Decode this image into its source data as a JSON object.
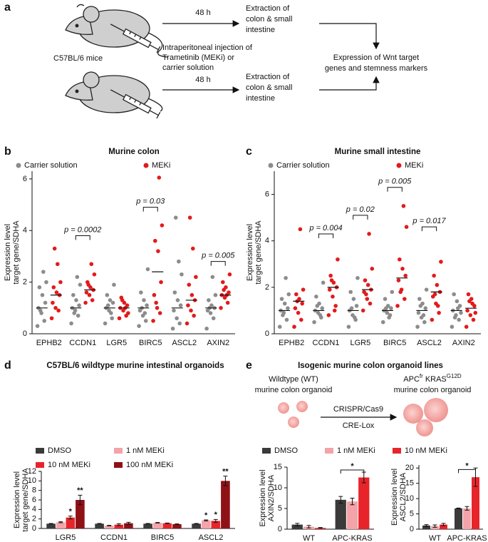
{
  "panel_labels": [
    "a",
    "b",
    "c",
    "d",
    "e"
  ],
  "diagram": {
    "mice_label": "C57BL/6 mice",
    "durations": [
      "48 h",
      "48 h"
    ],
    "extraction_top": [
      "Extraction of",
      "colon & small",
      "intestine"
    ],
    "extraction_bottom": [
      "Extraction of",
      "colon & small",
      "intestine"
    ],
    "injection": [
      "Intraperitoneal injection of",
      "Trametinib (MEKi) or",
      "carrier solution"
    ],
    "outcome": [
      "Expression of Wnt target",
      "genes and stemness markers"
    ]
  },
  "organoid_diagram": {
    "title": "Isogenic murine colon organoid lines",
    "wt_label": [
      "Wildtype (WT)",
      "murine colon organoid"
    ],
    "mut_label": [
      "APC",
      "fr",
      "KRAS",
      "G12D"
    ],
    "mut_label_line2": "murine colon organoid",
    "method_top": "CRISPR/Cas9",
    "method_bottom": "CRE-Lox"
  },
  "chart_data": [
    {
      "type": "strip",
      "title": "Murine colon",
      "ylabel": [
        "Expression level",
        "target gene/SDHA"
      ],
      "categories": [
        "EPHB2",
        "CCDN1",
        "LGR5",
        "BIRC5",
        "ASCL2",
        "AXIN2"
      ],
      "ylim": [
        0,
        6.3
      ],
      "yticks": [
        0,
        2,
        4,
        6
      ],
      "series": [
        {
          "name": "Carrier solution",
          "color": "#8c8c8c",
          "values": [
            [
              0.3,
              0.5,
              0.8,
              1.0,
              1.2,
              1.5,
              1.8,
              2.0,
              2.4,
              0.9
            ],
            [
              0.4,
              0.7,
              0.9,
              1.0,
              1.1,
              1.3,
              1.5,
              1.9,
              2.2,
              0.8
            ],
            [
              0.4,
              0.6,
              0.9,
              1.0,
              1.2,
              1.3,
              1.5,
              1.9,
              0.8,
              1.1
            ],
            [
              0.3,
              0.5,
              0.7,
              0.9,
              1.1,
              1.3,
              1.6,
              2.5,
              0.8,
              1.0
            ],
            [
              0.2,
              0.4,
              0.6,
              0.9,
              1.1,
              1.3,
              1.6,
              2.3,
              2.8,
              4.5
            ],
            [
              0.2,
              0.6,
              0.8,
              0.9,
              1.0,
              1.1,
              1.3,
              1.5,
              2.2,
              1.0
            ]
          ],
          "means": [
            1.0,
            1.0,
            1.0,
            1.0,
            1.0,
            1.0
          ]
        },
        {
          "name": "MEKi",
          "color": "#e31a1c",
          "values": [
            [
              0.6,
              0.9,
              1.0,
              1.2,
              1.5,
              1.6,
              1.8,
              2.0,
              2.7,
              3.3
            ],
            [
              1.2,
              1.3,
              1.5,
              1.6,
              1.7,
              1.8,
              2.0,
              2.3,
              2.7,
              1.9
            ],
            [
              0.6,
              0.7,
              0.9,
              1.0,
              1.1,
              1.2,
              1.4,
              0.8,
              1.0,
              1.3
            ],
            [
              0.5,
              0.8,
              1.0,
              1.5,
              2.0,
              3.2,
              3.6,
              4.2,
              6.05,
              1.2
            ],
            [
              0.4,
              0.7,
              0.9,
              1.1,
              1.3,
              1.5,
              1.9,
              2.2,
              3.3,
              4.5
            ],
            [
              1.0,
              1.2,
              1.4,
              1.5,
              1.6,
              1.8,
              2.0,
              2.3,
              1.5,
              1.7
            ]
          ],
          "means": [
            1.5,
            1.7,
            1.0,
            2.4,
            1.3,
            1.5
          ]
        }
      ],
      "annotations": [
        {
          "text": "p = 0.0002",
          "category": 1,
          "y": 3.8
        },
        {
          "text": "p = 0.03",
          "category": 3,
          "y": 4.9
        },
        {
          "text": "p = 0.005",
          "category": 5,
          "y": 2.8
        }
      ]
    },
    {
      "type": "strip",
      "title": "Murine small intestine",
      "ylabel": [
        "Expression level",
        "target gene/SDHA"
      ],
      "categories": [
        "EPHB2",
        "CCDN1",
        "LGR5",
        "BIRC5",
        "ASCL2",
        "AXIN2"
      ],
      "ylim": [
        0,
        7
      ],
      "yticks": [
        0,
        2,
        4,
        6
      ],
      "series": [
        {
          "name": "Carrier solution",
          "color": "#8c8c8c",
          "values": [
            [
              0.3,
              0.6,
              0.9,
              1.0,
              1.1,
              1.3,
              1.5,
              1.7,
              2.4,
              0.8
            ],
            [
              0.5,
              0.7,
              0.9,
              1.0,
              1.1,
              1.3,
              1.6,
              2.2,
              0.8,
              1.2
            ],
            [
              0.3,
              0.6,
              0.8,
              1.0,
              1.2,
              1.5,
              1.8,
              2.4,
              0.7,
              1.1
            ],
            [
              0.5,
              0.8,
              0.9,
              1.0,
              1.1,
              1.2,
              1.5,
              1.8,
              0.7,
              1.1
            ],
            [
              0.3,
              0.5,
              0.7,
              0.9,
              1.1,
              1.3,
              1.5,
              1.9,
              0.8,
              1.2
            ],
            [
              0.3,
              0.6,
              0.8,
              1.0,
              1.2,
              1.4,
              1.7,
              0.9,
              1.1,
              0.7
            ]
          ],
          "means": [
            1.0,
            1.0,
            1.0,
            1.0,
            1.0,
            1.0
          ]
        },
        {
          "name": "MEKi",
          "color": "#e31a1c",
          "values": [
            [
              0.3,
              0.6,
              0.9,
              1.1,
              1.3,
              1.5,
              1.7,
              1.9,
              4.5,
              1.4
            ],
            [
              0.8,
              1.2,
              1.6,
              1.9,
              2.0,
              2.2,
              2.5,
              3.2,
              1.0,
              2.3
            ],
            [
              1.0,
              1.3,
              1.5,
              1.8,
              1.9,
              2.1,
              2.3,
              2.8,
              4.3,
              1.7
            ],
            [
              1.2,
              1.5,
              1.9,
              2.3,
              2.5,
              2.8,
              3.2,
              4.6,
              5.5,
              1.8
            ],
            [
              0.6,
              0.9,
              1.3,
              1.6,
              1.8,
              2.1,
              2.5,
              3.1,
              1.2,
              1.7
            ],
            [
              0.3,
              0.6,
              0.8,
              1.0,
              1.2,
              1.5,
              1.7,
              0.9,
              1.3,
              1.4
            ]
          ],
          "means": [
            1.4,
            2.0,
            1.9,
            2.4,
            1.8,
            1.1
          ]
        }
      ],
      "annotations": [
        {
          "text": "p = 0.004",
          "category": 1,
          "y": 4.3
        },
        {
          "text": "p = 0.02",
          "category": 2,
          "y": 5.1
        },
        {
          "text": "p = 0.005",
          "category": 3,
          "y": 6.3
        },
        {
          "text": "p = 0.017",
          "category": 4,
          "y": 4.6
        }
      ]
    },
    {
      "type": "bar",
      "title": "C57BL/6 wildtype murine intestinal organoids",
      "ylabel": [
        "Expression level",
        "target gene/SDHA"
      ],
      "categories": [
        "LGR5",
        "CCDN1",
        "BIRC5",
        "ASCL2"
      ],
      "ylim": [
        0,
        12
      ],
      "yticks": [
        0,
        2,
        4,
        6,
        8,
        10,
        12
      ],
      "series": [
        {
          "name": "DMSO",
          "color": "#3a3a3a",
          "values": [
            1.0,
            1.0,
            1.0,
            1.0
          ],
          "errors": [
            0.05,
            0.05,
            0.05,
            0.05
          ]
        },
        {
          "name": "1 nM MEKi",
          "color": "#f4a3a8",
          "values": [
            1.3,
            0.6,
            1.2,
            1.7
          ],
          "errors": [
            0.1,
            0.05,
            0.05,
            0.1
          ]
        },
        {
          "name": "10 nM MEKi",
          "color": "#e8242b",
          "values": [
            2.3,
            0.8,
            1.1,
            1.6
          ],
          "errors": [
            0.3,
            0.2,
            0.05,
            0.3
          ]
        },
        {
          "name": "100 nM MEKi",
          "color": "#8e1116",
          "values": [
            6.0,
            1.1,
            0.9,
            10.0
          ],
          "errors": [
            1.0,
            0.2,
            0.05,
            1.0
          ]
        }
      ],
      "annotations": [
        {
          "text": "*",
          "series": 2,
          "category": 0
        },
        {
          "text": "**",
          "series": 3,
          "category": 0
        },
        {
          "text": "*",
          "series": 1,
          "category": 3
        },
        {
          "text": "*",
          "series": 2,
          "category": 3
        },
        {
          "text": "**",
          "series": 3,
          "category": 3
        }
      ]
    },
    {
      "type": "bar",
      "ylabel": [
        "Expression level",
        "AXIN2/SDHA"
      ],
      "categories": [
        "WT",
        "APC-KRAS"
      ],
      "ylim": [
        0,
        15
      ],
      "yticks": [
        0,
        5,
        10,
        15
      ],
      "series": [
        {
          "name": "DMSO",
          "color": "#3a3a3a",
          "values": [
            1.1,
            7.1
          ],
          "errors": [
            0.3,
            0.8
          ]
        },
        {
          "name": "1 nM MEKi",
          "color": "#f4a3a8",
          "values": [
            0.6,
            6.7
          ],
          "errors": [
            0.3,
            0.8
          ]
        },
        {
          "name": "10 nM MEKi",
          "color": "#e8242b",
          "values": [
            0.3,
            12.5
          ],
          "errors": [
            0.1,
            1.3
          ]
        }
      ],
      "brackets": [
        {
          "text": "*",
          "category": 1,
          "from_series": 0,
          "to_series": 2,
          "y": 14.3
        }
      ]
    },
    {
      "type": "bar",
      "ylabel": [
        "Expression level",
        "ASCL2/SDHA"
      ],
      "categories": [
        "WT",
        "APC-KRAS"
      ],
      "ylim": [
        0,
        21
      ],
      "yticks": [
        0,
        5,
        10,
        15,
        20
      ],
      "series": [
        {
          "color": "#3a3a3a",
          "values": [
            1.2,
            6.8
          ],
          "errors": [
            0.3,
            0.1
          ]
        },
        {
          "color": "#f4a3a8",
          "values": [
            1.0,
            6.8
          ],
          "errors": [
            0.4,
            0.6
          ]
        },
        {
          "color": "#e8242b",
          "values": [
            1.5,
            17.0
          ],
          "errors": [
            0.4,
            3.0
          ]
        }
      ],
      "brackets": [
        {
          "text": "*",
          "category": 1,
          "from_series": 0,
          "to_series": 2,
          "y": 19.5
        }
      ]
    }
  ]
}
